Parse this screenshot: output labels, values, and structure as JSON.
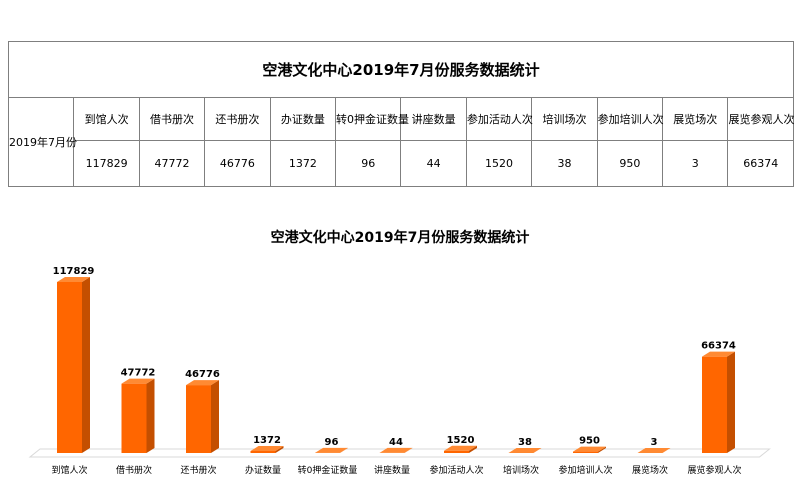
{
  "table": {
    "title": "空港文化中心2019年7月份服务数据统计",
    "row_label": "2019年7月份",
    "headers": [
      "到馆人次",
      "借书册次",
      "还书册次",
      "办证数量",
      "转0押金证数量",
      "讲座数量",
      "参加活动人次",
      "培训场次",
      "参加培训人次",
      "展览场次",
      "展览参观人次"
    ],
    "values": [
      "117829",
      "47772",
      "46776",
      "1372",
      "96",
      "44",
      "1520",
      "38",
      "950",
      "3",
      "66374"
    ]
  },
  "colors": {
    "bar_front": "#ff6600",
    "bar_side": "#c44f00",
    "bar_top": "#ff8a33",
    "floor": "#ffffff",
    "floor_edge": "#d9d9d9"
  },
  "chart_data": {
    "type": "bar",
    "title": "空港文化中心2019年7月份服务数据统计",
    "categories": [
      "到馆人次",
      "借书册次",
      "还书册次",
      "办证数量",
      "转0押金证数量",
      "讲座数量",
      "参加活动人次",
      "培训场次",
      "参加培训人次",
      "展览场次",
      "展览参观人次"
    ],
    "values": [
      117829,
      47772,
      46776,
      1372,
      96,
      44,
      1520,
      38,
      950,
      3,
      66374
    ],
    "data_labels": [
      "117829",
      "47772",
      "46776",
      "1372",
      "96",
      "44",
      "1520",
      "38",
      "950",
      "3",
      "66374"
    ],
    "xlabel": "",
    "ylabel": "",
    "ylim": [
      0,
      120000
    ],
    "grid": false,
    "legend": "none",
    "style": "3d"
  }
}
